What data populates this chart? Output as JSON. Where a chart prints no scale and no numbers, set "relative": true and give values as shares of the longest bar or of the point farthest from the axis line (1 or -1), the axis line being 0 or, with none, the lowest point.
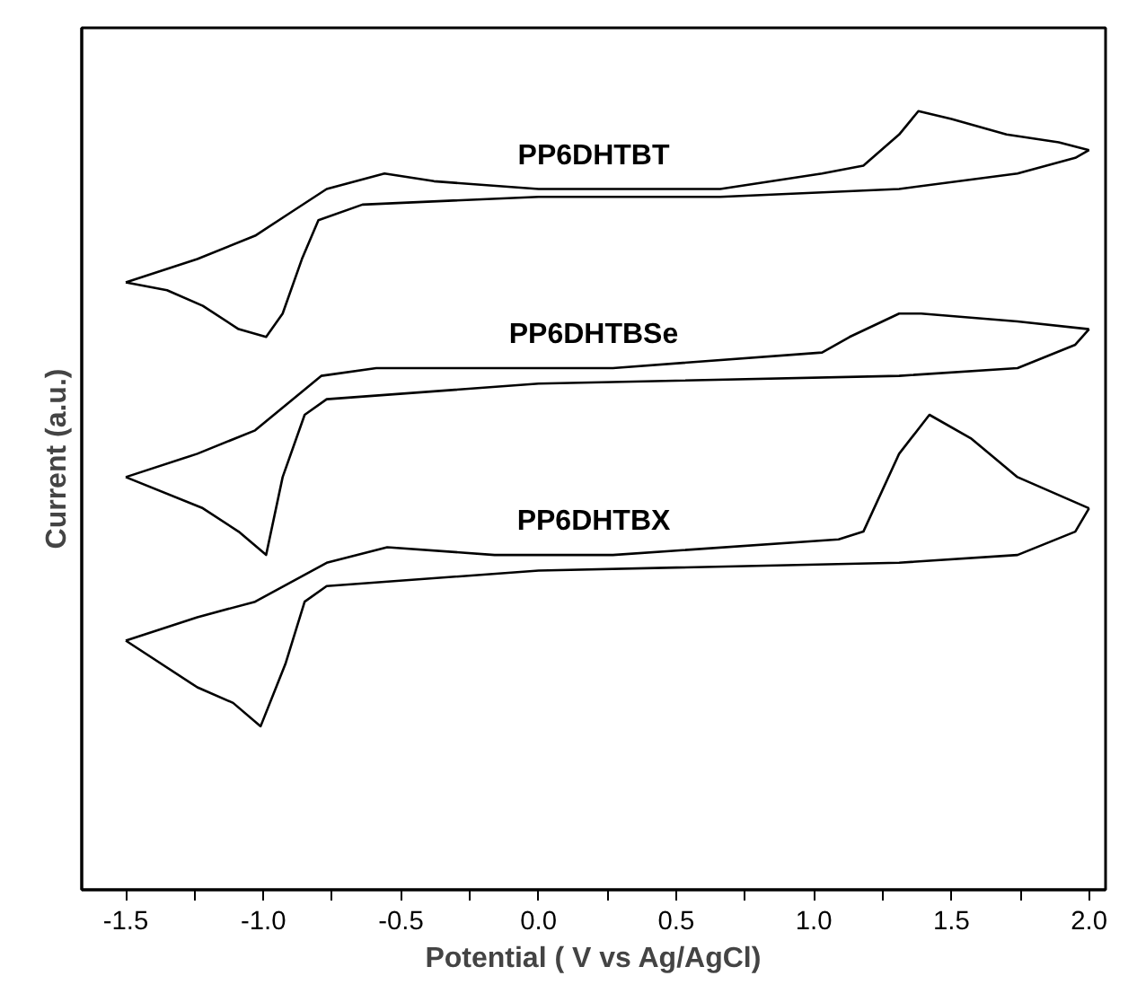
{
  "chart_data": {
    "type": "line",
    "relative": true,
    "xlabel": "Potential ( V vs Ag/AgCl)",
    "ylabel": "Current (a.u.)",
    "xlim": [
      -1.66,
      2.06
    ],
    "xticks": [
      {
        "value": -1.5,
        "label": "-1.5"
      },
      {
        "value": -1.25,
        "label": null
      },
      {
        "value": -1.0,
        "label": "-1.0"
      },
      {
        "value": -0.75,
        "label": null
      },
      {
        "value": -0.5,
        "label": "-0.5"
      },
      {
        "value": -0.25,
        "label": null
      },
      {
        "value": 0.0,
        "label": "0.0"
      },
      {
        "value": 0.25,
        "label": null
      },
      {
        "value": 0.5,
        "label": "0.5"
      },
      {
        "value": 0.75,
        "label": null
      },
      {
        "value": 1.0,
        "label": "1.0"
      },
      {
        "value": 1.25,
        "label": null
      },
      {
        "value": 1.5,
        "label": "1.5"
      },
      {
        "value": 1.75,
        "label": null
      },
      {
        "value": 2.0,
        "label": "2.0"
      }
    ],
    "tick_labels": "x",
    "marker": "none",
    "line_style": "solid",
    "series": [
      {
        "name": "PP6DHTBT",
        "color": "#000000",
        "x": [
          -1.5,
          -1.24,
          -1.03,
          -0.9,
          -0.77,
          -0.56,
          -0.38,
          0.0,
          0.66,
          1.03,
          1.18,
          1.31,
          1.38,
          1.5,
          1.7,
          1.89,
          2.0
        ],
        "values": [
          0.78,
          0.81,
          0.84,
          0.87,
          0.9,
          0.92,
          0.91,
          0.9,
          0.9,
          0.92,
          0.93,
          0.97,
          1.0,
          0.99,
          0.97,
          0.96,
          0.95
        ]
      },
      {
        "color": "#000000",
        "x": [
          2.0,
          1.95,
          1.74,
          1.31,
          0.66,
          0.0,
          -0.64,
          -0.8,
          -0.86,
          -0.93,
          -0.99,
          -1.09,
          -1.22,
          -1.35,
          -1.5
        ],
        "values": [
          0.95,
          0.94,
          0.92,
          0.9,
          0.89,
          0.89,
          0.88,
          0.86,
          0.81,
          0.74,
          0.71,
          0.72,
          0.75,
          0.77,
          0.78
        ]
      },
      {
        "name": "PP6DHTBSe",
        "color": "#000000",
        "x": [
          -1.5,
          -1.24,
          -1.03,
          -0.79,
          -0.59,
          0.27,
          1.03,
          1.13,
          1.31,
          1.39,
          1.74,
          2.0
        ],
        "values": [
          0.53,
          0.56,
          0.59,
          0.66,
          0.67,
          0.67,
          0.69,
          0.71,
          0.74,
          0.74,
          0.73,
          0.72
        ]
      },
      {
        "color": "#000000",
        "x": [
          2.0,
          1.95,
          1.74,
          1.31,
          0.0,
          -0.77,
          -0.85,
          -0.93,
          -0.99,
          -1.09,
          -1.22,
          -1.5
        ],
        "values": [
          0.72,
          0.7,
          0.67,
          0.66,
          0.65,
          0.63,
          0.61,
          0.53,
          0.43,
          0.46,
          0.49,
          0.53
        ]
      },
      {
        "name": "PP6DHTBX",
        "color": "#000000",
        "x": [
          -1.5,
          -1.24,
          -1.03,
          -0.77,
          -0.55,
          -0.16,
          0.27,
          1.09,
          1.18,
          1.31,
          1.42,
          1.57,
          1.74,
          2.0
        ],
        "values": [
          0.32,
          0.35,
          0.37,
          0.42,
          0.44,
          0.43,
          0.43,
          0.45,
          0.46,
          0.56,
          0.61,
          0.58,
          0.53,
          0.49
        ]
      },
      {
        "color": "#000000",
        "x": [
          2.0,
          1.95,
          1.74,
          1.31,
          0.0,
          -0.77,
          -0.85,
          -0.92,
          -1.01,
          -1.11,
          -1.24,
          -1.5
        ],
        "values": [
          0.49,
          0.46,
          0.43,
          0.42,
          0.41,
          0.39,
          0.37,
          0.29,
          0.21,
          0.24,
          0.26,
          0.32
        ]
      }
    ]
  }
}
